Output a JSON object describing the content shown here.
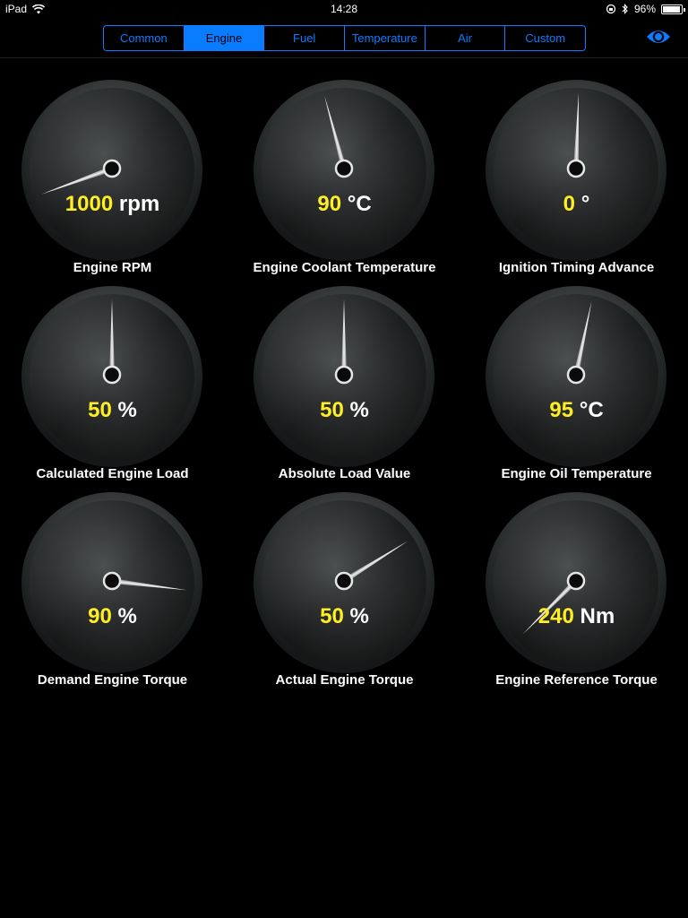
{
  "status": {
    "device": "iPad",
    "time": "14:28",
    "battery": "96%",
    "battery_level": 0.96
  },
  "tabs": [
    {
      "label": "Common",
      "active": false
    },
    {
      "label": "Engine",
      "active": true
    },
    {
      "label": "Fuel",
      "active": false
    },
    {
      "label": "Temperature",
      "active": false
    },
    {
      "label": "Air",
      "active": false
    },
    {
      "label": "Custom",
      "active": false
    }
  ],
  "colors": {
    "accent": "#0a7cff",
    "value": "#ffee22"
  },
  "gauges": [
    {
      "label": "Engine RPM",
      "value": "1000",
      "unit": "rpm",
      "needle_deg": -110
    },
    {
      "label": "Engine Coolant Temperature",
      "value": "90",
      "unit": "°C",
      "needle_deg": -15
    },
    {
      "label": "Ignition Timing Advance",
      "value": "0",
      "unit": "°",
      "needle_deg": 2
    },
    {
      "label": "Calculated Engine Load",
      "value": "50",
      "unit": "%",
      "needle_deg": 0
    },
    {
      "label": "Absolute Load Value",
      "value": "50",
      "unit": "%",
      "needle_deg": 0
    },
    {
      "label": "Engine Oil Temperature",
      "value": "95",
      "unit": "°C",
      "needle_deg": 12
    },
    {
      "label": "Demand Engine Torque",
      "value": "90",
      "unit": "%",
      "needle_deg": 97
    },
    {
      "label": "Actual Engine Torque",
      "value": "50",
      "unit": "%",
      "needle_deg": 58
    },
    {
      "label": "Engine Reference Torque",
      "value": "240",
      "unit": "Nm",
      "needle_deg": -135
    }
  ]
}
